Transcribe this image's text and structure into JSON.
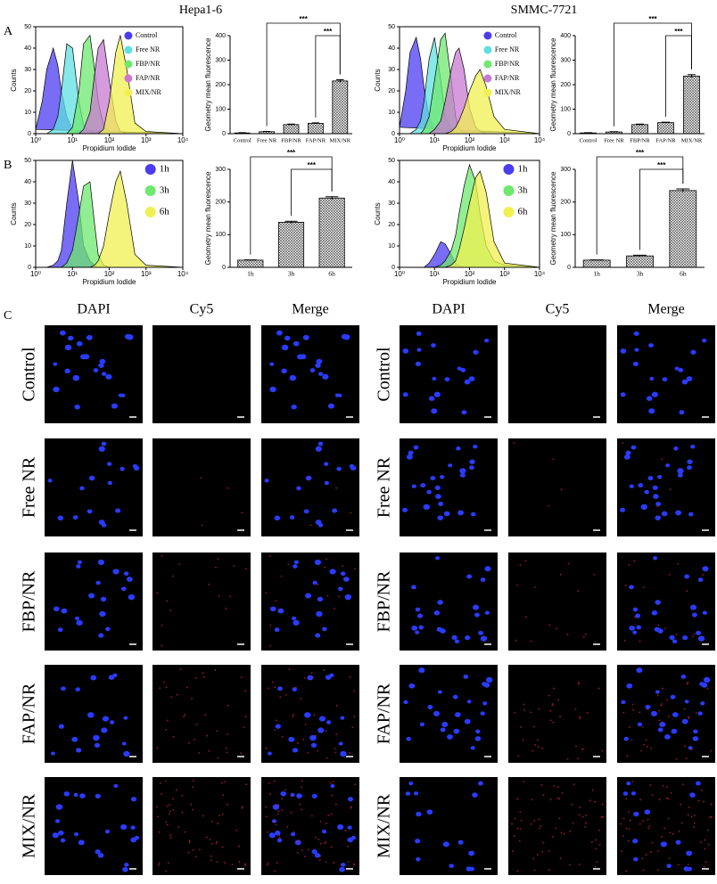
{
  "column_titles": [
    "Hepa1-6",
    "SMMC-7721"
  ],
  "panel_labels": [
    "A",
    "B",
    "C"
  ],
  "chart_data": [
    {
      "type": "area",
      "xscale": "log",
      "xlabel": "Propidium Iodide",
      "ylabel": "Counts",
      "legend": "upper right",
      "x": [
        1,
        1.5,
        2,
        3,
        4,
        5,
        7,
        10,
        15,
        20,
        30,
        40,
        50,
        70,
        100,
        150,
        200,
        300,
        500,
        1000,
        10000
      ],
      "xlim": [
        1,
        10000
      ],
      "xticks": [
        {
          "value": 1,
          "label": "10⁰"
        },
        {
          "value": 10,
          "label": "10¹"
        },
        {
          "value": 100,
          "label": "10²"
        },
        {
          "value": 1000,
          "label": "10³"
        },
        {
          "value": 10000,
          "label": "10⁴"
        }
      ],
      "ylim": [
        0,
        50
      ],
      "yticks": [
        0,
        10,
        20,
        30,
        40,
        50
      ],
      "series": [
        {
          "name": "Control",
          "color": "#4b3cf0",
          "values": [
            2,
            15,
            30,
            40,
            32,
            20,
            8,
            2,
            0,
            0,
            0,
            0,
            0,
            0,
            0,
            0,
            0,
            0,
            0,
            0,
            0
          ]
        },
        {
          "name": "Free NR",
          "color": "#5ee0e0",
          "values": [
            0,
            0,
            0,
            2,
            8,
            20,
            42,
            40,
            15,
            4,
            1,
            0,
            0,
            0,
            0,
            0,
            0,
            0,
            0,
            0,
            0
          ]
        },
        {
          "name": "FBP/NR",
          "color": "#6ee86e",
          "values": [
            0,
            0,
            0,
            0,
            0,
            0,
            0,
            3,
            20,
            42,
            46,
            30,
            15,
            4,
            1,
            0,
            0,
            0,
            0,
            0,
            0
          ]
        },
        {
          "name": "FAP/NR",
          "color": "#c87ad2",
          "values": [
            0,
            0,
            0,
            0,
            0,
            0,
            0,
            0,
            0,
            2,
            10,
            28,
            40,
            44,
            25,
            6,
            1,
            0,
            0,
            0,
            0
          ]
        },
        {
          "name": "MIX/NR",
          "color": "#f0f050",
          "values": [
            0,
            0,
            0,
            0,
            0,
            0,
            0,
            0,
            0,
            0,
            0,
            0,
            0,
            2,
            15,
            38,
            46,
            30,
            5,
            1,
            0
          ]
        }
      ]
    },
    {
      "type": "bar",
      "ylabel": "Geometry mean fluorescence",
      "categories": [
        "Control",
        "Free NR",
        "FBP/NR",
        "FAP/NR",
        "MIX/NR"
      ],
      "values": [
        3,
        8,
        37,
        42,
        215
      ],
      "errors": [
        1,
        1,
        2,
        2,
        5
      ],
      "ylim": [
        0,
        400
      ],
      "yticks": [
        0,
        100,
        200,
        300,
        400
      ],
      "annotations": [
        {
          "text": "***",
          "from": 1,
          "to": 4
        },
        {
          "text": "***",
          "from": 3,
          "to": 4
        }
      ]
    },
    {
      "type": "area",
      "xscale": "log",
      "xlabel": "Propidium Iodide",
      "ylabel": "Counts",
      "legend": "upper right",
      "x": [
        1,
        1.5,
        2,
        3,
        4,
        5,
        7,
        10,
        15,
        20,
        30,
        40,
        50,
        70,
        100,
        150,
        200,
        300,
        500,
        1000,
        10000
      ],
      "xlim": [
        1,
        10000
      ],
      "xticks": [
        {
          "value": 1,
          "label": "10⁰"
        },
        {
          "value": 10,
          "label": "10¹"
        },
        {
          "value": 100,
          "label": "10²"
        },
        {
          "value": 1000,
          "label": "10³"
        },
        {
          "value": 10000,
          "label": "10⁴"
        }
      ],
      "ylim": [
        0,
        50
      ],
      "yticks": [
        0,
        10,
        20,
        30,
        40,
        50
      ],
      "series": [
        {
          "name": "Control",
          "color": "#4b3cf0",
          "values": [
            3,
            20,
            38,
            45,
            35,
            22,
            8,
            2,
            0,
            0,
            0,
            0,
            0,
            0,
            0,
            0,
            0,
            0,
            0,
            0,
            0
          ]
        },
        {
          "name": "Free NR",
          "color": "#5ee0e0",
          "values": [
            0,
            0,
            0,
            2,
            6,
            15,
            35,
            45,
            25,
            8,
            2,
            0,
            0,
            0,
            0,
            0,
            0,
            0,
            0,
            0,
            0
          ]
        },
        {
          "name": "FBP/NR",
          "color": "#6ee86e",
          "values": [
            0,
            0,
            0,
            0,
            0,
            2,
            8,
            25,
            44,
            47,
            25,
            8,
            2,
            0,
            0,
            0,
            0,
            0,
            0,
            0,
            0
          ]
        },
        {
          "name": "FAP/NR",
          "color": "#c87ad2",
          "values": [
            0,
            0,
            0,
            0,
            0,
            0,
            0,
            2,
            6,
            15,
            30,
            38,
            40,
            30,
            12,
            3,
            1,
            0,
            0,
            0,
            0
          ]
        },
        {
          "name": "MIX/NR",
          "color": "#f0f050",
          "values": [
            0,
            0,
            0,
            0,
            0,
            0,
            0,
            0,
            0,
            0,
            1,
            3,
            6,
            12,
            20,
            27,
            30,
            22,
            8,
            2,
            0
          ]
        }
      ]
    },
    {
      "type": "bar",
      "ylabel": "Geometry mean fluorescence",
      "categories": [
        "Control",
        "Free NR",
        "FBP/NR",
        "FAP/NR",
        "MIX/NR"
      ],
      "values": [
        3,
        7,
        37,
        45,
        235
      ],
      "errors": [
        1,
        1,
        2,
        2,
        6
      ],
      "ylim": [
        0,
        400
      ],
      "yticks": [
        0,
        100,
        200,
        300,
        400
      ],
      "annotations": [
        {
          "text": "***",
          "from": 1,
          "to": 4
        },
        {
          "text": "***",
          "from": 3,
          "to": 4
        }
      ]
    },
    {
      "type": "area",
      "xscale": "log",
      "xlabel": "Propidium Iodide",
      "ylabel": "Counts",
      "legend": "upper right",
      "x": [
        1,
        1.5,
        2,
        3,
        4,
        5,
        7,
        10,
        15,
        20,
        30,
        40,
        50,
        70,
        100,
        150,
        200,
        300,
        500,
        1000,
        10000
      ],
      "xlim": [
        1,
        10000
      ],
      "xticks": [
        {
          "value": 1,
          "label": "10⁰"
        },
        {
          "value": 10,
          "label": "10¹"
        },
        {
          "value": 100,
          "label": "10²"
        },
        {
          "value": 1000,
          "label": "10³"
        },
        {
          "value": 10000,
          "label": "10⁴"
        }
      ],
      "ylim": [
        0,
        50
      ],
      "yticks": [
        0,
        10,
        20,
        30,
        40,
        50
      ],
      "series": [
        {
          "name": "1h",
          "color": "#4b3cf0",
          "values": [
            0,
            0,
            0,
            1,
            3,
            8,
            30,
            50,
            30,
            10,
            3,
            1,
            0,
            0,
            0,
            0,
            0,
            0,
            0,
            0,
            0
          ]
        },
        {
          "name": "3h",
          "color": "#6ee86e",
          "values": [
            0,
            0,
            0,
            0,
            0,
            0,
            2,
            8,
            25,
            38,
            40,
            20,
            6,
            1,
            0,
            0,
            0,
            0,
            0,
            0,
            0
          ]
        },
        {
          "name": "6h",
          "color": "#f0f050",
          "values": [
            0,
            0,
            0,
            0,
            0,
            0,
            0,
            0,
            0,
            0,
            0,
            1,
            3,
            10,
            25,
            40,
            45,
            30,
            6,
            1,
            0
          ]
        }
      ]
    },
    {
      "type": "bar",
      "ylabel": "Geometry mean fluorescence",
      "categories": [
        "1h",
        "3h",
        "6h"
      ],
      "values": [
        22,
        138,
        212
      ],
      "errors": [
        1,
        3,
        4
      ],
      "ylim": [
        0,
        300
      ],
      "yticks": [
        0,
        100,
        200,
        300
      ],
      "annotations": [
        {
          "text": "***",
          "from": 0,
          "to": 2
        },
        {
          "text": "***",
          "from": 1,
          "to": 2
        }
      ]
    },
    {
      "type": "area",
      "xscale": "log",
      "xlabel": "Propidium Iodide",
      "ylabel": "Counts",
      "legend": "upper right",
      "x": [
        1,
        1.5,
        2,
        3,
        4,
        5,
        7,
        10,
        15,
        20,
        30,
        40,
        50,
        70,
        100,
        150,
        200,
        300,
        500,
        1000,
        10000
      ],
      "xlim": [
        1,
        10000
      ],
      "xticks": [
        {
          "value": 1,
          "label": "10⁰"
        },
        {
          "value": 10,
          "label": "10¹"
        },
        {
          "value": 100,
          "label": "10²"
        },
        {
          "value": 1000,
          "label": "10³"
        },
        {
          "value": 10000,
          "label": "10⁴"
        }
      ],
      "ylim": [
        0,
        50
      ],
      "yticks": [
        0,
        10,
        20,
        30,
        40,
        50
      ],
      "series": [
        {
          "name": "1h",
          "color": "#4b3cf0",
          "values": [
            0,
            0,
            0,
            0,
            0,
            0,
            2,
            6,
            12,
            11,
            6,
            2,
            1,
            0,
            0,
            0,
            0,
            0,
            0,
            0,
            0
          ]
        },
        {
          "name": "3h",
          "color": "#6ee86e",
          "values": [
            0,
            0,
            0,
            0,
            0,
            0,
            0,
            0,
            1,
            3,
            8,
            15,
            25,
            38,
            48,
            40,
            25,
            10,
            3,
            1,
            0
          ]
        },
        {
          "name": "6h",
          "color": "#f0f050",
          "values": [
            0,
            0,
            0,
            0,
            0,
            0,
            0,
            0,
            0,
            0,
            1,
            3,
            8,
            18,
            30,
            42,
            45,
            35,
            12,
            2,
            0
          ]
        }
      ]
    },
    {
      "type": "bar",
      "ylabel": "Geometry mean fluorescence",
      "categories": [
        "1h",
        "3h",
        "6h"
      ],
      "values": [
        22,
        35,
        235
      ],
      "errors": [
        1,
        2,
        5
      ],
      "ylim": [
        0,
        300
      ],
      "yticks": [
        0,
        100,
        200,
        300
      ],
      "annotations": [
        {
          "text": "***",
          "from": 0,
          "to": 2
        },
        {
          "text": "***",
          "from": 1,
          "to": 2
        }
      ]
    }
  ],
  "micrographs": [
    {
      "columns": [
        "DAPI",
        "Cy5",
        "Merge"
      ],
      "rows": [
        "Control",
        "Free NR",
        "FBP/NR",
        "FAP/NR",
        "MIX/NR"
      ]
    },
    {
      "columns": [
        "DAPI",
        "Cy5",
        "Merge"
      ],
      "rows": [
        "Control",
        "Free NR",
        "FBP/NR",
        "FAP/NR",
        "MIX/NR"
      ]
    }
  ]
}
